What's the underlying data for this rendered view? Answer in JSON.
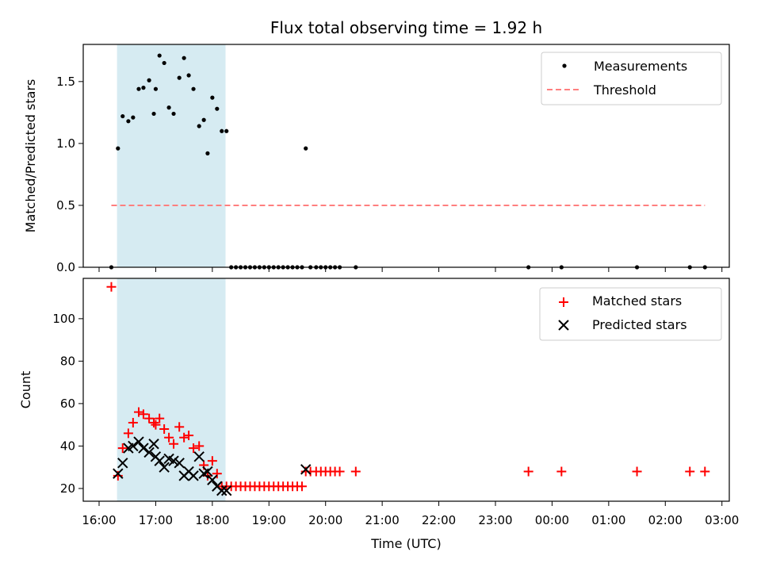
{
  "chart_data": [
    {
      "type": "scatter",
      "title": "Flux total observing time = 1.92 h",
      "ylabel": "Matched/Predicted stars",
      "ylim": [
        0,
        1.8
      ],
      "yticks": [
        0.0,
        0.5,
        1.0,
        1.5
      ],
      "ytick_labels": [
        "0.0",
        "0.5",
        "1.0",
        "1.5"
      ],
      "grid": false,
      "legend_position": "top-right",
      "shaded_interval": [
        "16:19",
        "18:14"
      ],
      "shade_color": "#add8e6",
      "series": [
        {
          "name": "Measurements",
          "color": "#000000",
          "marker": "dot",
          "points": [
            [
              "16:13",
              0.0
            ],
            [
              "16:20",
              0.96
            ],
            [
              "16:25",
              1.22
            ],
            [
              "16:31",
              1.18
            ],
            [
              "16:36",
              1.21
            ],
            [
              "16:42",
              1.44
            ],
            [
              "16:47",
              1.45
            ],
            [
              "16:53",
              1.51
            ],
            [
              "16:58",
              1.24
            ],
            [
              "17:00",
              1.44
            ],
            [
              "17:04",
              1.71
            ],
            [
              "17:09",
              1.65
            ],
            [
              "17:14",
              1.29
            ],
            [
              "17:19",
              1.24
            ],
            [
              "17:25",
              1.53
            ],
            [
              "17:30",
              1.69
            ],
            [
              "17:35",
              1.55
            ],
            [
              "17:40",
              1.44
            ],
            [
              "17:46",
              1.14
            ],
            [
              "17:51",
              1.19
            ],
            [
              "17:55",
              0.92
            ],
            [
              "18:00",
              1.37
            ],
            [
              "18:05",
              1.28
            ],
            [
              "18:10",
              1.1
            ],
            [
              "18:15",
              1.1
            ],
            [
              "18:20",
              0.0
            ],
            [
              "18:25",
              0.0
            ],
            [
              "18:30",
              0.0
            ],
            [
              "18:35",
              0.0
            ],
            [
              "18:40",
              0.0
            ],
            [
              "18:45",
              0.0
            ],
            [
              "18:50",
              0.0
            ],
            [
              "18:55",
              0.0
            ],
            [
              "19:00",
              0.0
            ],
            [
              "19:05",
              0.0
            ],
            [
              "19:10",
              0.0
            ],
            [
              "19:15",
              0.0
            ],
            [
              "19:20",
              0.0
            ],
            [
              "19:25",
              0.0
            ],
            [
              "19:30",
              0.0
            ],
            [
              "19:35",
              0.0
            ],
            [
              "19:39",
              0.96
            ],
            [
              "19:44",
              0.0
            ],
            [
              "19:50",
              0.0
            ],
            [
              "19:55",
              0.0
            ],
            [
              "20:00",
              0.0
            ],
            [
              "20:05",
              0.0
            ],
            [
              "20:10",
              0.0
            ],
            [
              "20:15",
              0.0
            ],
            [
              "20:32",
              0.0
            ],
            [
              "23:35",
              0.0
            ],
            [
              "00:10",
              0.0
            ],
            [
              "01:30",
              0.0
            ],
            [
              "02:26",
              0.0
            ],
            [
              "02:42",
              0.0
            ]
          ]
        },
        {
          "name": "Threshold",
          "color": "#ff7f7f",
          "style": "dashed",
          "points": [
            [
              "16:13",
              0.5
            ],
            [
              "02:42",
              0.5
            ]
          ]
        }
      ]
    },
    {
      "type": "scatter",
      "xlabel": "Time (UTC)",
      "ylabel": "Count",
      "ylim": [
        14,
        119
      ],
      "yticks": [
        20,
        40,
        60,
        80,
        100
      ],
      "ytick_labels": [
        "20",
        "40",
        "60",
        "80",
        "100"
      ],
      "xticks": [
        "16:00",
        "17:00",
        "18:00",
        "19:00",
        "20:00",
        "21:00",
        "22:00",
        "23:00",
        "00:00",
        "01:00",
        "02:00",
        "03:00"
      ],
      "grid": false,
      "legend_position": "top-right",
      "shaded_interval": [
        "16:19",
        "18:14"
      ],
      "series": [
        {
          "name": "Matched stars",
          "color": "#ff0000",
          "marker": "plus",
          "points": [
            [
              "16:13",
              115
            ],
            [
              "16:20",
              26
            ],
            [
              "16:25",
              39
            ],
            [
              "16:31",
              46
            ],
            [
              "16:36",
              51
            ],
            [
              "16:42",
              56
            ],
            [
              "16:47",
              55
            ],
            [
              "16:53",
              53
            ],
            [
              "16:58",
              51
            ],
            [
              "17:00",
              50
            ],
            [
              "17:04",
              53
            ],
            [
              "17:09",
              48
            ],
            [
              "17:14",
              44
            ],
            [
              "17:19",
              41
            ],
            [
              "17:25",
              49
            ],
            [
              "17:30",
              44
            ],
            [
              "17:35",
              45
            ],
            [
              "17:40",
              39
            ],
            [
              "17:46",
              40
            ],
            [
              "17:51",
              31
            ],
            [
              "17:55",
              26
            ],
            [
              "18:00",
              33
            ],
            [
              "18:05",
              27
            ],
            [
              "18:10",
              21
            ],
            [
              "18:15",
              21
            ],
            [
              "18:20",
              21
            ],
            [
              "18:25",
              21
            ],
            [
              "18:30",
              21
            ],
            [
              "18:35",
              21
            ],
            [
              "18:40",
              21
            ],
            [
              "18:45",
              21
            ],
            [
              "18:50",
              21
            ],
            [
              "18:55",
              21
            ],
            [
              "19:00",
              21
            ],
            [
              "19:05",
              21
            ],
            [
              "19:10",
              21
            ],
            [
              "19:15",
              21
            ],
            [
              "19:20",
              21
            ],
            [
              "19:25",
              21
            ],
            [
              "19:30",
              21
            ],
            [
              "19:35",
              21
            ],
            [
              "19:39",
              28
            ],
            [
              "19:44",
              28
            ],
            [
              "19:50",
              28
            ],
            [
              "19:55",
              28
            ],
            [
              "20:00",
              28
            ],
            [
              "20:05",
              28
            ],
            [
              "20:10",
              28
            ],
            [
              "20:15",
              28
            ],
            [
              "20:32",
              28
            ],
            [
              "23:35",
              28
            ],
            [
              "00:10",
              28
            ],
            [
              "01:30",
              28
            ],
            [
              "02:26",
              28
            ],
            [
              "02:42",
              28
            ]
          ]
        },
        {
          "name": "Predicted stars",
          "color": "#000000",
          "marker": "x",
          "points": [
            [
              "16:20",
              27
            ],
            [
              "16:25",
              32
            ],
            [
              "16:31",
              39
            ],
            [
              "16:36",
              40
            ],
            [
              "16:42",
              42
            ],
            [
              "16:47",
              39
            ],
            [
              "16:53",
              37
            ],
            [
              "16:58",
              41
            ],
            [
              "17:00",
              35
            ],
            [
              "17:04",
              33
            ],
            [
              "17:09",
              30
            ],
            [
              "17:14",
              34
            ],
            [
              "17:19",
              33
            ],
            [
              "17:25",
              32
            ],
            [
              "17:30",
              26
            ],
            [
              "17:35",
              28
            ],
            [
              "17:40",
              26
            ],
            [
              "17:46",
              35
            ],
            [
              "17:51",
              27
            ],
            [
              "17:55",
              28
            ],
            [
              "18:00",
              24
            ],
            [
              "18:05",
              21
            ],
            [
              "18:10",
              19
            ],
            [
              "18:15",
              19
            ],
            [
              "19:39",
              29
            ]
          ]
        }
      ]
    }
  ]
}
